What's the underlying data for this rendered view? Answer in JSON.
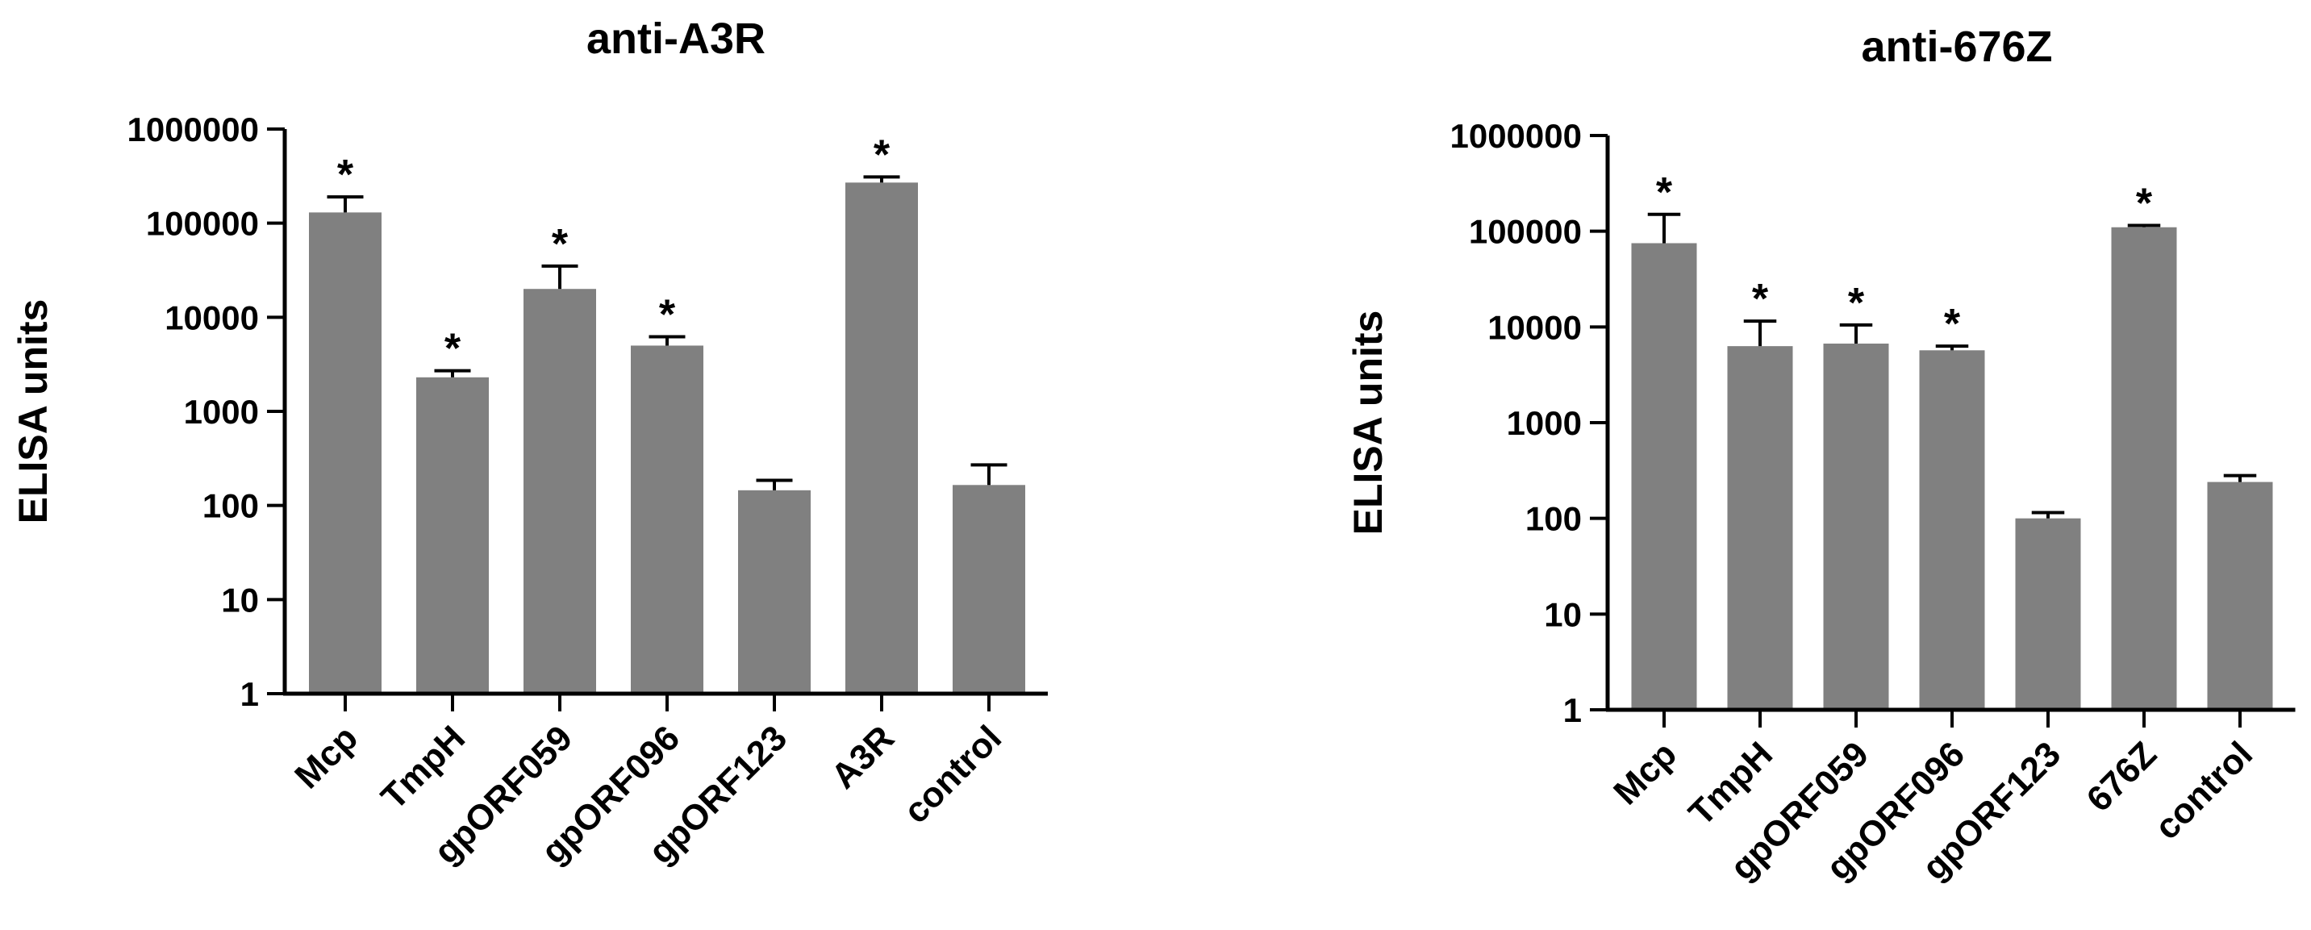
{
  "chart_data": [
    {
      "type": "bar",
      "title": "anti-A3R",
      "xlabel": "",
      "ylabel": "ELISA units",
      "yscale": "log",
      "ylim": [
        1,
        1000000
      ],
      "yticks": [
        "1",
        "10",
        "100",
        "1000",
        "10000",
        "100000",
        "1000000"
      ],
      "categories": [
        "Mcp",
        "TmpH",
        "gpORF059",
        "gpORF096",
        "gpORF123",
        "A3R",
        "control"
      ],
      "values": [
        130000,
        2300,
        20000,
        5000,
        145,
        270000,
        165
      ],
      "error_upper": [
        190000,
        2700,
        35000,
        6200,
        185,
        310000,
        270
      ],
      "significant": [
        true,
        true,
        true,
        true,
        false,
        true,
        false
      ],
      "significance_marker": "*",
      "bar_color": "#808080",
      "grid": false
    },
    {
      "type": "bar",
      "title": "anti-676Z",
      "xlabel": "",
      "ylabel": "ELISA units",
      "yscale": "log",
      "ylim": [
        1,
        1000000
      ],
      "yticks": [
        "1",
        "10",
        "100",
        "1000",
        "10000",
        "100000",
        "1000000"
      ],
      "categories": [
        "Mcp",
        "TmpH",
        "gpORF059",
        "gpORF096",
        "gpORF123",
        "676Z",
        "control"
      ],
      "values": [
        75000,
        6300,
        6700,
        5700,
        100,
        110000,
        240
      ],
      "error_upper": [
        150000,
        11500,
        10500,
        6300,
        115,
        115000,
        280
      ],
      "significant": [
        true,
        true,
        true,
        true,
        false,
        true,
        false
      ],
      "significance_marker": "*",
      "bar_color": "#808080",
      "grid": false
    }
  ]
}
